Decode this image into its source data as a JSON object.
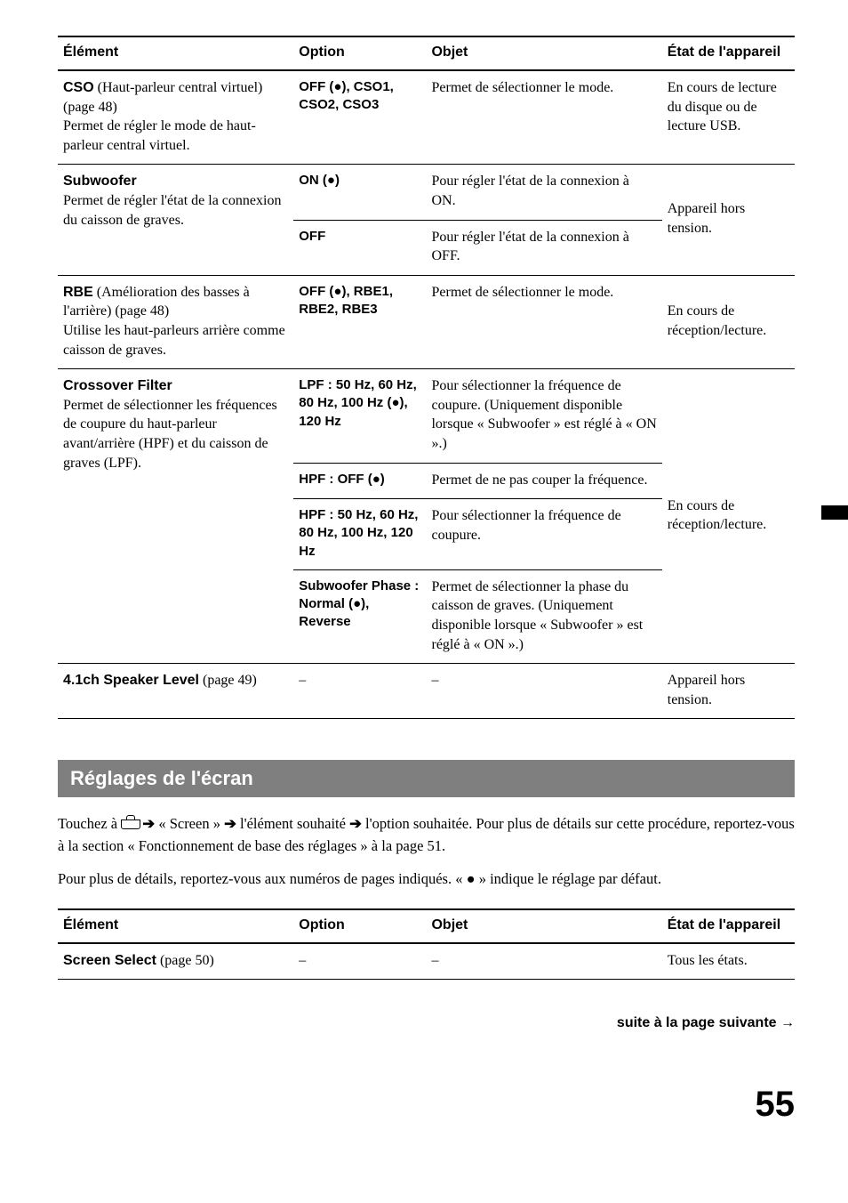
{
  "table1": {
    "headers": {
      "element": "Élément",
      "option": "Option",
      "objet": "Objet",
      "etat": "État de l'appareil"
    },
    "rows": {
      "cso": {
        "elem_bold": "CSO",
        "elem_rest": " (Haut-parleur central virtuel) (page 48)\nPermet de régler le mode de haut-parleur central virtuel.",
        "option": "OFF (●), CSO1, CSO2, CSO3",
        "objet": "Permet de sélectionner le mode.",
        "etat": "En cours de lecture du disque ou de lecture USB."
      },
      "sub": {
        "elem_bold": "Subwoofer",
        "elem_rest": "\nPermet de régler l'état de la connexion du caisson de graves.",
        "on": {
          "option": "ON (●)",
          "objet": "Pour régler l'état de la connexion à ON."
        },
        "off": {
          "option": "OFF",
          "objet": "Pour régler l'état de la connexion à OFF."
        },
        "etat": "Appareil hors tension."
      },
      "rbe": {
        "elem_bold": "RBE",
        "elem_rest": " (Amélioration des basses à l'arrière) (page 48)\nUtilise les haut-parleurs arrière comme caisson de graves.",
        "option": "OFF (●), RBE1, RBE2, RBE3",
        "objet": "Permet de sélectionner le mode.",
        "etat": "En cours de réception/lecture."
      },
      "xover": {
        "elem_bold": "Crossover Filter",
        "elem_rest": "\nPermet de sélectionner les fréquences de coupure du haut-parleur avant/arrière (HPF) et du caisson de graves (LPF).",
        "lpf": {
          "option": "LPF : 50 Hz, 60 Hz, 80 Hz, 100 Hz (●), 120 Hz",
          "objet": "Pour sélectionner la fréquence de coupure. (Uniquement disponible lorsque « Subwoofer » est réglé à « ON ».)"
        },
        "hpfoff": {
          "option": "HPF : OFF (●)",
          "objet": "Permet de ne pas couper la fréquence."
        },
        "hpf": {
          "option": "HPF : 50 Hz, 60 Hz, 80 Hz, 100 Hz, 120 Hz",
          "objet": "Pour sélectionner la fréquence de coupure."
        },
        "phase": {
          "option": "Subwoofer Phase : Normal (●), Reverse",
          "objet": "Permet de sélectionner la phase du caisson de graves. (Uniquement disponible lorsque « Subwoofer » est réglé à « ON ».)"
        },
        "etat": "En cours de réception/lecture."
      },
      "spk": {
        "elem_bold": "4.1ch Speaker Level",
        "elem_rest": " (page 49)",
        "option": "–",
        "objet": "–",
        "etat": "Appareil hors tension."
      }
    }
  },
  "section_title": "Réglages de l'écran",
  "para1_a": "Touchez à ",
  "para1_b": " « Screen » ",
  "para1_c": " l'élément souhaité ",
  "para1_d": " l'option souhaitée. Pour plus de détails sur cette procédure, reportez-vous à la section « Fonctionnement de base des réglages » à la page 51.",
  "para2": "Pour plus de détails, reportez-vous aux numéros de pages indiqués. « ● » indique le réglage par défaut.",
  "arrow": "➔",
  "table2": {
    "headers": {
      "element": "Élément",
      "option": "Option",
      "objet": "Objet",
      "etat": "État de l'appareil"
    },
    "row": {
      "elem_bold": "Screen Select",
      "elem_rest": " (page 50)",
      "option": "–",
      "objet": "–",
      "etat": "Tous les états."
    }
  },
  "continue_text": "suite à la page suivante ",
  "continue_arrow": "→",
  "page_number": "55"
}
